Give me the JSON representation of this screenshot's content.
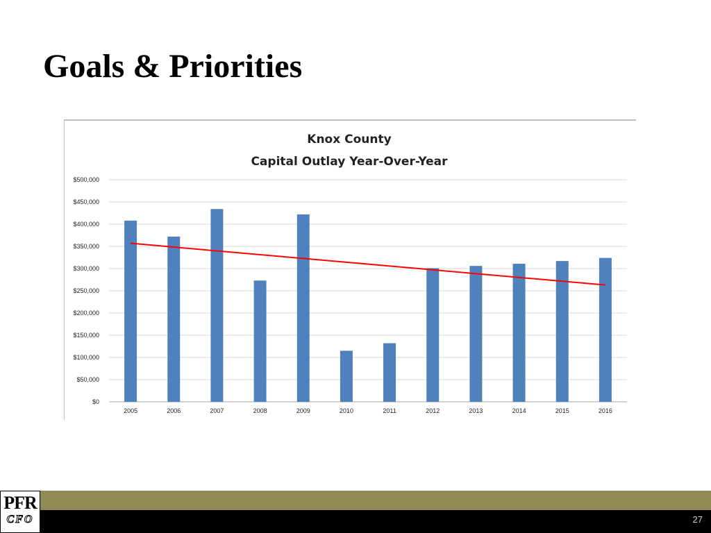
{
  "slide": {
    "title": "Goals & Priorities",
    "page_number": "27"
  },
  "logo": {
    "top_text": "PFR",
    "bottom_text": "CFO"
  },
  "colors": {
    "bar": "#4f81bd",
    "trendline": "#ff0000",
    "gridline": "#d9d9d9",
    "footer_olive": "#918a54",
    "footer_black": "#000000"
  },
  "chart_data": {
    "type": "bar",
    "title": "Knox County",
    "subtitle": "Capital Outlay Year-Over-Year",
    "categories": [
      "2005",
      "2006",
      "2007",
      "2008",
      "2009",
      "2010",
      "2011",
      "2012",
      "2013",
      "2014",
      "2015",
      "2016"
    ],
    "values": [
      408000,
      372000,
      434000,
      273000,
      422000,
      115000,
      132000,
      301000,
      306000,
      311000,
      317000,
      324000
    ],
    "trendline": {
      "type": "linear",
      "start_value": 357000,
      "end_value": 263000
    },
    "y_ticks": [
      "$0",
      "$50,000",
      "$100,000",
      "$150,000",
      "$200,000",
      "$250,000",
      "$300,000",
      "$350,000",
      "$400,000",
      "$450,000",
      "$500,000"
    ],
    "ylim": [
      0,
      500000
    ],
    "xlabel": "",
    "ylabel": "",
    "grid": true,
    "legend": "none"
  }
}
